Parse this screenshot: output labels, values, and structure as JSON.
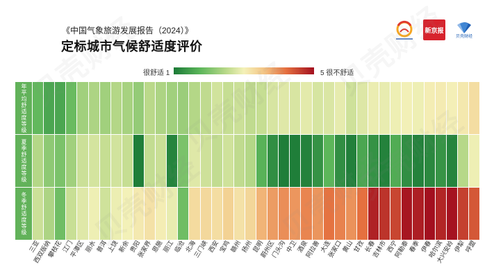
{
  "report_title": "《中国气象旅游发展报告（2024）》",
  "logos": {
    "xinjingbao_text": "新京报",
    "beike_text": "贝壳财经",
    "colors": {
      "xinjingbao_red": "#d7232d",
      "beike_blue": "#1f5fb4",
      "association_orange": "#f5a623",
      "association_red": "#e03a2f"
    }
  },
  "watermark": "贝壳财经",
  "legend": {
    "low_label": "很舒适 1",
    "high_label": "5 很不舒适"
  },
  "chart_data": {
    "type": "heatmap",
    "title": "定标城市气候舒适度评价",
    "rows": [
      "年平均舒适度等级",
      "夏季舒适度等级",
      "冬季舒适度等级"
    ],
    "columns": [
      "三亚",
      "西双版纳",
      "攀枝花",
      "江门",
      "平潭区",
      "丽水",
      "普洱",
      "上饶",
      "新余",
      "贵阳",
      "张家界",
      "恩施",
      "丽江",
      "临沧",
      "北海",
      "三门峡",
      "西安",
      "宝鸡",
      "赣州",
      "扬州",
      "昆明",
      "蔚州区",
      "门头沟",
      "中卫",
      "酒泉",
      "阿拉善",
      "大连",
      "张家口",
      "黄山",
      "甘孜",
      "长春",
      "吉林市",
      "西宁",
      "阿勒泰",
      "春季",
      "伊春",
      "哈尔滨",
      "大兴安岭",
      "伊犁",
      "呼盟"
    ],
    "values": [
      [
        1.8,
        1.55,
        1.55,
        1.85,
        2.3,
        2.4,
        2.3,
        2.45,
        2.35,
        2.2,
        2.5,
        2.4,
        2.3,
        2.25,
        2.45,
        2.55,
        2.7,
        2.6,
        2.65,
        2.55,
        2.6,
        2.75,
        2.82,
        2.76,
        2.85,
        2.74,
        2.78,
        2.88,
        2.67,
        2.8,
        2.92,
        2.9,
        2.95,
        2.98,
        2.95,
        3.05,
        3.08,
        3.02,
        3.12,
        3.25
      ],
      [
        2.45,
        2.15,
        2.0,
        2.3,
        2.65,
        2.72,
        2.6,
        2.7,
        2.6,
        1.05,
        2.58,
        2.63,
        1.12,
        2.0,
        2.82,
        2.67,
        2.57,
        2.68,
        2.55,
        2.45,
        1.7,
        1.25,
        1.05,
        1.05,
        1.1,
        1.3,
        1.75,
        1.25,
        1.08,
        1.55,
        1.3,
        1.1,
        1.62,
        1.25,
        1.1,
        1.18,
        1.32,
        1.12,
        2.47,
        2.95
      ],
      [
        2.65,
        2.4,
        1.9,
        2.62,
        2.82,
        2.95,
        2.68,
        2.93,
        2.99,
        3.1,
        3.2,
        3.05,
        2.9,
        1.9,
        3.28,
        3.32,
        3.25,
        3.4,
        3.2,
        3.35,
        3.7,
        3.88,
        3.98,
        3.92,
        4.05,
        3.93,
        4.18,
        4.07,
        3.95,
        4.2,
        4.85,
        4.7,
        4.55,
        4.95,
        4.88,
        5.0,
        4.82,
        4.98,
        4.6,
        4.4
      ]
    ],
    "scale": {
      "min": 1,
      "max": 5
    },
    "color_stops": [
      {
        "value": 1,
        "color": "#1b7a37"
      },
      {
        "value": 1.75,
        "color": "#5cb65a"
      },
      {
        "value": 2.5,
        "color": "#bad98a"
      },
      {
        "value": 3,
        "color": "#f4f1b9"
      },
      {
        "value": 3.6,
        "color": "#f3c282"
      },
      {
        "value": 4.2,
        "color": "#e5703f"
      },
      {
        "value": 5,
        "color": "#a3101f"
      }
    ],
    "row_label_color": "#62b25a",
    "legend_position": "top-center"
  }
}
